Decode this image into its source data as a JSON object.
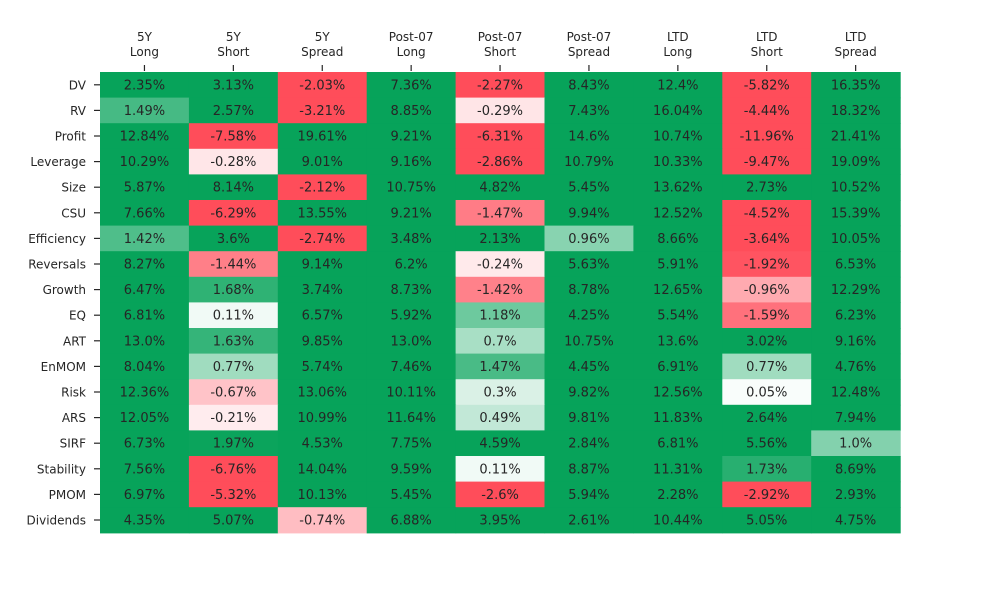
{
  "chart_data": {
    "type": "heatmap",
    "columns": [
      [
        "5Y",
        "Long"
      ],
      [
        "5Y",
        "Short"
      ],
      [
        "5Y",
        "Spread"
      ],
      [
        "Post-07",
        "Long"
      ],
      [
        "Post-07",
        "Short"
      ],
      [
        "Post-07",
        "Spread"
      ],
      [
        "LTD",
        "Long"
      ],
      [
        "LTD",
        "Short"
      ],
      [
        "LTD",
        "Spread"
      ]
    ],
    "rows": [
      "DV",
      "RV",
      "Profit",
      "Leverage",
      "Size",
      "CSU",
      "Efficiency",
      "Reversals",
      "Growth",
      "EQ",
      "ART",
      "EnMOM",
      "Risk",
      "ARS",
      "SIRF",
      "Stability",
      "PMOM",
      "Dividends"
    ],
    "values": [
      [
        2.35,
        3.13,
        -2.03,
        7.36,
        -2.27,
        8.43,
        12.4,
        -5.82,
        16.35
      ],
      [
        1.49,
        2.57,
        -3.21,
        8.85,
        -0.29,
        7.43,
        16.04,
        -4.44,
        18.32
      ],
      [
        12.84,
        -7.58,
        19.61,
        9.21,
        -6.31,
        14.6,
        10.74,
        -11.96,
        21.41
      ],
      [
        10.29,
        -0.28,
        9.01,
        9.16,
        -2.86,
        10.79,
        10.33,
        -9.47,
        19.09
      ],
      [
        5.87,
        8.14,
        -2.12,
        10.75,
        4.82,
        5.45,
        13.62,
        2.73,
        10.52
      ],
      [
        7.66,
        -6.29,
        13.55,
        9.21,
        -1.47,
        9.94,
        12.52,
        -4.52,
        15.39
      ],
      [
        1.42,
        3.6,
        -2.74,
        3.48,
        2.13,
        0.96,
        8.66,
        -3.64,
        10.05
      ],
      [
        8.27,
        -1.44,
        9.14,
        6.2,
        -0.24,
        5.63,
        5.91,
        -1.92,
        6.53
      ],
      [
        6.47,
        1.68,
        3.74,
        8.73,
        -1.42,
        8.78,
        12.65,
        -0.96,
        12.29
      ],
      [
        6.81,
        0.11,
        6.57,
        5.92,
        1.18,
        4.25,
        5.54,
        -1.59,
        6.23
      ],
      [
        13.0,
        1.63,
        9.85,
        13.0,
        0.7,
        10.75,
        13.6,
        3.02,
        9.16
      ],
      [
        8.04,
        0.77,
        5.74,
        7.46,
        1.47,
        4.45,
        6.91,
        0.77,
        4.76
      ],
      [
        12.36,
        -0.67,
        13.06,
        10.11,
        0.3,
        9.82,
        12.56,
        0.05,
        12.48
      ],
      [
        12.05,
        -0.21,
        10.99,
        11.64,
        0.49,
        9.81,
        11.83,
        2.64,
        7.94
      ],
      [
        6.73,
        1.97,
        4.53,
        7.75,
        4.59,
        2.84,
        6.81,
        5.56,
        1.0
      ],
      [
        7.56,
        -6.76,
        14.04,
        9.59,
        0.11,
        8.87,
        11.31,
        1.73,
        8.69
      ],
      [
        6.97,
        -5.32,
        10.13,
        5.45,
        -2.6,
        5.94,
        2.28,
        -2.92,
        2.93
      ],
      [
        4.35,
        5.07,
        -0.74,
        6.88,
        3.95,
        2.61,
        10.44,
        5.05,
        4.75
      ]
    ],
    "labels": [
      [
        "2.35%",
        "3.13%",
        "-2.03%",
        "7.36%",
        "-2.27%",
        "8.43%",
        "12.4%",
        "-5.82%",
        "16.35%"
      ],
      [
        "1.49%",
        "2.57%",
        "-3.21%",
        "8.85%",
        "-0.29%",
        "7.43%",
        "16.04%",
        "-4.44%",
        "18.32%"
      ],
      [
        "12.84%",
        "-7.58%",
        "19.61%",
        "9.21%",
        "-6.31%",
        "14.6%",
        "10.74%",
        "-11.96%",
        "21.41%"
      ],
      [
        "10.29%",
        "-0.28%",
        "9.01%",
        "9.16%",
        "-2.86%",
        "10.79%",
        "10.33%",
        "-9.47%",
        "19.09%"
      ],
      [
        "5.87%",
        "8.14%",
        "-2.12%",
        "10.75%",
        "4.82%",
        "5.45%",
        "13.62%",
        "2.73%",
        "10.52%"
      ],
      [
        "7.66%",
        "-6.29%",
        "13.55%",
        "9.21%",
        "-1.47%",
        "9.94%",
        "12.52%",
        "-4.52%",
        "15.39%"
      ],
      [
        "1.42%",
        "3.6%",
        "-2.74%",
        "3.48%",
        "2.13%",
        "0.96%",
        "8.66%",
        "-3.64%",
        "10.05%"
      ],
      [
        "8.27%",
        "-1.44%",
        "9.14%",
        "6.2%",
        "-0.24%",
        "5.63%",
        "5.91%",
        "-1.92%",
        "6.53%"
      ],
      [
        "6.47%",
        "1.68%",
        "3.74%",
        "8.73%",
        "-1.42%",
        "8.78%",
        "12.65%",
        "-0.96%",
        "12.29%"
      ],
      [
        "6.81%",
        "0.11%",
        "6.57%",
        "5.92%",
        "1.18%",
        "4.25%",
        "5.54%",
        "-1.59%",
        "6.23%"
      ],
      [
        "13.0%",
        "1.63%",
        "9.85%",
        "13.0%",
        "0.7%",
        "10.75%",
        "13.6%",
        "3.02%",
        "9.16%"
      ],
      [
        "8.04%",
        "0.77%",
        "5.74%",
        "7.46%",
        "1.47%",
        "4.45%",
        "6.91%",
        "0.77%",
        "4.76%"
      ],
      [
        "12.36%",
        "-0.67%",
        "13.06%",
        "10.11%",
        "0.3%",
        "9.82%",
        "12.56%",
        "0.05%",
        "12.48%"
      ],
      [
        "12.05%",
        "-0.21%",
        "10.99%",
        "11.64%",
        "0.49%",
        "9.81%",
        "11.83%",
        "2.64%",
        "7.94%"
      ],
      [
        "6.73%",
        "1.97%",
        "4.53%",
        "7.75%",
        "4.59%",
        "2.84%",
        "6.81%",
        "5.56%",
        "1.0%"
      ],
      [
        "7.56%",
        "-6.76%",
        "14.04%",
        "9.59%",
        "0.11%",
        "8.87%",
        "11.31%",
        "1.73%",
        "8.69%"
      ],
      [
        "6.97%",
        "-5.32%",
        "10.13%",
        "5.45%",
        "-2.6%",
        "5.94%",
        "2.28%",
        "-2.92%",
        "2.93%"
      ],
      [
        "4.35%",
        "5.07%",
        "-0.74%",
        "6.88%",
        "3.95%",
        "2.61%",
        "10.44%",
        "5.05%",
        "4.75%"
      ]
    ],
    "color_scale": {
      "negative": "#ff4d5a",
      "zero": "#ffffff",
      "positive": "#07a35a",
      "vmin": -2,
      "vmax": 2,
      "center": 0
    },
    "x_ticks_position": "top",
    "grid": false,
    "legend": "none"
  }
}
